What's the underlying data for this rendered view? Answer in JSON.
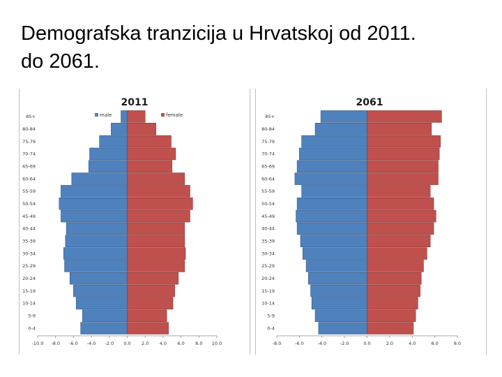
{
  "slide": {
    "title_line1": "Demografska tranzicija u Hrvatskoj od 2011.",
    "title_line2": "do 2061."
  },
  "colors": {
    "male": "#4f81bd",
    "female": "#c0504d",
    "male_stroke": "#385d8a",
    "female_stroke": "#8c3836"
  },
  "chart_data": [
    {
      "type": "bar",
      "orientation": "horizontal-population-pyramid",
      "title": "2011",
      "categories": [
        "0-4",
        "5-9",
        "10-14",
        "15-19",
        "20-24",
        "25-29",
        "30-34",
        "35-39",
        "40-44",
        "45-49",
        "50-54",
        "55-59",
        "60-64",
        "65-69",
        "70-74",
        "75-79",
        "80-84",
        "85+"
      ],
      "series": [
        {
          "name": "male",
          "values": [
            -5.2,
            -5.0,
            -5.7,
            -6.0,
            -6.4,
            -7.0,
            -7.1,
            -6.9,
            -6.8,
            -7.4,
            -7.6,
            -7.4,
            -6.2,
            -4.3,
            -4.2,
            -3.1,
            -1.8,
            -0.7
          ]
        },
        {
          "name": "female",
          "values": [
            4.6,
            4.4,
            5.1,
            5.3,
            5.7,
            6.4,
            6.5,
            6.4,
            6.4,
            7.0,
            7.3,
            7.0,
            6.4,
            5.0,
            5.4,
            4.9,
            3.2,
            2.0
          ]
        }
      ],
      "legend": {
        "items": [
          "male",
          "female"
        ],
        "position": "top-left"
      },
      "xlim": [
        -10.0,
        10.0
      ],
      "xticks": [
        "-10.0",
        "-8.0",
        "-6.0",
        "-4.0",
        "-2.0",
        "0.0",
        "2.0",
        "4.0",
        "6.0",
        "8.0",
        "10.0"
      ]
    },
    {
      "type": "bar",
      "orientation": "horizontal-population-pyramid",
      "title": "2061",
      "categories": [
        "0-4",
        "5-9",
        "10-14",
        "15-19",
        "20-24",
        "25-29",
        "30-34",
        "35-39",
        "40-44",
        "45-49",
        "50-54",
        "55-59",
        "60-64",
        "65-69",
        "70-74",
        "75-79",
        "80-84",
        "85+"
      ],
      "series": [
        {
          "name": "male",
          "values": [
            -4.3,
            -4.6,
            -4.9,
            -5.0,
            -5.2,
            -5.4,
            -5.7,
            -5.9,
            -6.2,
            -6.3,
            -6.2,
            -5.8,
            -6.4,
            -6.2,
            -6.0,
            -5.8,
            -4.6,
            -4.1
          ]
        },
        {
          "name": "female",
          "values": [
            4.1,
            4.3,
            4.5,
            4.7,
            4.8,
            5.0,
            5.3,
            5.6,
            5.9,
            6.1,
            5.9,
            5.6,
            6.3,
            6.3,
            6.4,
            6.5,
            5.7,
            6.6
          ]
        }
      ],
      "legend": null,
      "xlim": [
        -8.0,
        8.0
      ],
      "xticks": [
        "-8.0",
        "-6.0",
        "-4.0",
        "-2.0",
        "0.0",
        "2.0",
        "4.0",
        "6.0",
        "8.0"
      ]
    }
  ]
}
